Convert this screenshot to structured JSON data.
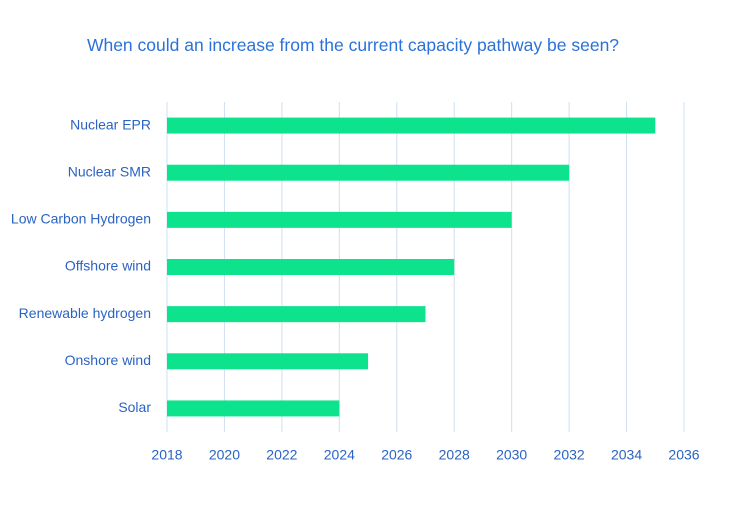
{
  "chart_data": {
    "type": "bar",
    "orientation": "horizontal",
    "title": "When could an increase from the current capacity pathway be seen?",
    "categories": [
      "Nuclear EPR",
      "Nuclear SMR",
      "Low Carbon Hydrogen",
      "Offshore wind",
      "Renewable hydrogen",
      "Onshore wind",
      "Solar"
    ],
    "values": [
      2035,
      2032,
      2030,
      2028,
      2027,
      2025,
      2024
    ],
    "color": "#0ce38c",
    "xlim": [
      2018,
      2036
    ],
    "xticks": [
      2018,
      2020,
      2022,
      2024,
      2026,
      2028,
      2030,
      2032,
      2034,
      2036
    ],
    "grid": true
  }
}
